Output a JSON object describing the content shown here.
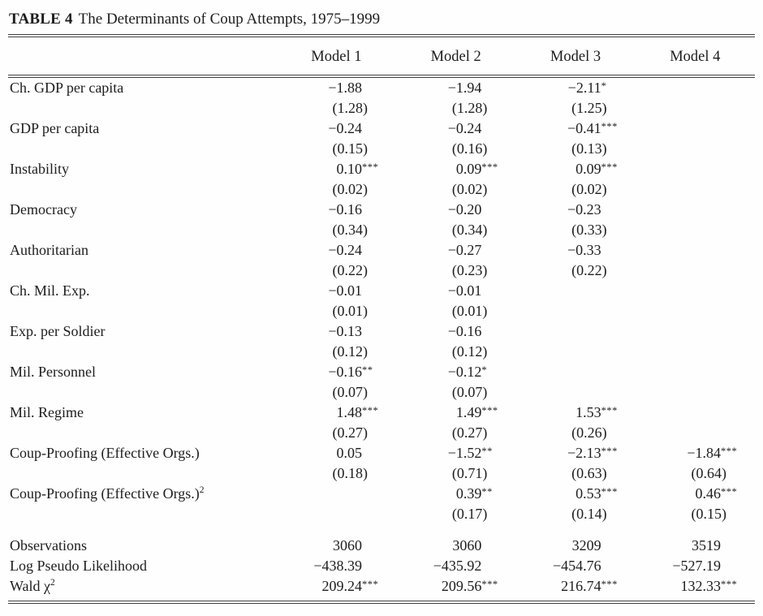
{
  "page": {
    "title_label": "TABLE 4",
    "title_text": "The Determinants of Coup Attempts, 1975–1999"
  },
  "table": {
    "column_headers": [
      "Model 1",
      "Model 2",
      "Model 3",
      "Model 4"
    ],
    "rows": [
      {
        "label": "Ch. GDP per capita",
        "label_sup": "",
        "cells": [
          {
            "coef": "−1.88",
            "stars": "",
            "se": "(1.28)"
          },
          {
            "coef": "−1.94",
            "stars": "",
            "se": "(1.28)"
          },
          {
            "coef": "−2.11",
            "stars": "*",
            "se": "(1.25)"
          },
          {
            "coef": "",
            "stars": "",
            "se": ""
          }
        ]
      },
      {
        "label": "GDP per capita",
        "label_sup": "",
        "cells": [
          {
            "coef": "−0.24",
            "stars": "",
            "se": "(0.15)"
          },
          {
            "coef": "−0.24",
            "stars": "",
            "se": "(0.16)"
          },
          {
            "coef": "−0.41",
            "stars": "***",
            "se": "(0.13)"
          },
          {
            "coef": "",
            "stars": "",
            "se": ""
          }
        ]
      },
      {
        "label": "Instability",
        "label_sup": "",
        "cells": [
          {
            "coef": "0.10",
            "stars": "***",
            "se": "(0.02)"
          },
          {
            "coef": "0.09",
            "stars": "***",
            "se": "(0.02)"
          },
          {
            "coef": "0.09",
            "stars": "***",
            "se": "(0.02)"
          },
          {
            "coef": "",
            "stars": "",
            "se": ""
          }
        ]
      },
      {
        "label": "Democracy",
        "label_sup": "",
        "cells": [
          {
            "coef": "−0.16",
            "stars": "",
            "se": "(0.34)"
          },
          {
            "coef": "−0.20",
            "stars": "",
            "se": "(0.34)"
          },
          {
            "coef": "−0.23",
            "stars": "",
            "se": "(0.33)"
          },
          {
            "coef": "",
            "stars": "",
            "se": ""
          }
        ]
      },
      {
        "label": "Authoritarian",
        "label_sup": "",
        "cells": [
          {
            "coef": "−0.24",
            "stars": "",
            "se": "(0.22)"
          },
          {
            "coef": "−0.27",
            "stars": "",
            "se": "(0.23)"
          },
          {
            "coef": "−0.33",
            "stars": "",
            "se": "(0.22)"
          },
          {
            "coef": "",
            "stars": "",
            "se": ""
          }
        ]
      },
      {
        "label": "Ch. Mil. Exp.",
        "label_sup": "",
        "cells": [
          {
            "coef": "−0.01",
            "stars": "",
            "se": "(0.01)"
          },
          {
            "coef": "−0.01",
            "stars": "",
            "se": "(0.01)"
          },
          {
            "coef": "",
            "stars": "",
            "se": ""
          },
          {
            "coef": "",
            "stars": "",
            "se": ""
          }
        ]
      },
      {
        "label": "Exp. per Soldier",
        "label_sup": "",
        "cells": [
          {
            "coef": "−0.13",
            "stars": "",
            "se": "(0.12)"
          },
          {
            "coef": "−0.16",
            "stars": "",
            "se": "(0.12)"
          },
          {
            "coef": "",
            "stars": "",
            "se": ""
          },
          {
            "coef": "",
            "stars": "",
            "se": ""
          }
        ]
      },
      {
        "label": "Mil. Personnel",
        "label_sup": "",
        "cells": [
          {
            "coef": "−0.16",
            "stars": "**",
            "se": "(0.07)"
          },
          {
            "coef": "−0.12",
            "stars": "*",
            "se": "(0.07)"
          },
          {
            "coef": "",
            "stars": "",
            "se": ""
          },
          {
            "coef": "",
            "stars": "",
            "se": ""
          }
        ]
      },
      {
        "label": "Mil. Regime",
        "label_sup": "",
        "cells": [
          {
            "coef": "1.48",
            "stars": "***",
            "se": "(0.27)"
          },
          {
            "coef": "1.49",
            "stars": "***",
            "se": "(0.27)"
          },
          {
            "coef": "1.53",
            "stars": "***",
            "se": "(0.26)"
          },
          {
            "coef": "",
            "stars": "",
            "se": ""
          }
        ]
      },
      {
        "label": "Coup-Proofing (Effective Orgs.)",
        "label_sup": "",
        "cells": [
          {
            "coef": "0.05",
            "stars": "",
            "se": "(0.18)"
          },
          {
            "coef": "−1.52",
            "stars": "**",
            "se": "(0.71)"
          },
          {
            "coef": "−2.13",
            "stars": "***",
            "se": "(0.63)"
          },
          {
            "coef": "−1.84",
            "stars": "***",
            "se": "(0.64)"
          }
        ]
      },
      {
        "label": "Coup-Proofing (Effective Orgs.)",
        "label_sup": "2",
        "cells": [
          {
            "coef": "",
            "stars": "",
            "se": ""
          },
          {
            "coef": "0.39",
            "stars": "**",
            "se": "(0.17)"
          },
          {
            "coef": "0.53",
            "stars": "***",
            "se": "(0.14)"
          },
          {
            "coef": "0.46",
            "stars": "***",
            "se": "(0.15)"
          }
        ]
      }
    ],
    "summary_rows": [
      {
        "label": "Observations",
        "label_sup": "",
        "values": [
          {
            "v": "3060",
            "stars": ""
          },
          {
            "v": "3060",
            "stars": ""
          },
          {
            "v": "3209",
            "stars": ""
          },
          {
            "v": "3519",
            "stars": ""
          }
        ]
      },
      {
        "label": "Log Pseudo Likelihood",
        "label_sup": "",
        "values": [
          {
            "v": "−438.39",
            "stars": ""
          },
          {
            "v": "−435.92",
            "stars": ""
          },
          {
            "v": "−454.76",
            "stars": ""
          },
          {
            "v": "−527.19",
            "stars": ""
          }
        ]
      },
      {
        "label": "Wald χ",
        "label_sup": "2",
        "values": [
          {
            "v": "209.24",
            "stars": "***"
          },
          {
            "v": "209.56",
            "stars": "***"
          },
          {
            "v": "216.74",
            "stars": "***"
          },
          {
            "v": "132.33",
            "stars": "***"
          }
        ]
      }
    ]
  }
}
